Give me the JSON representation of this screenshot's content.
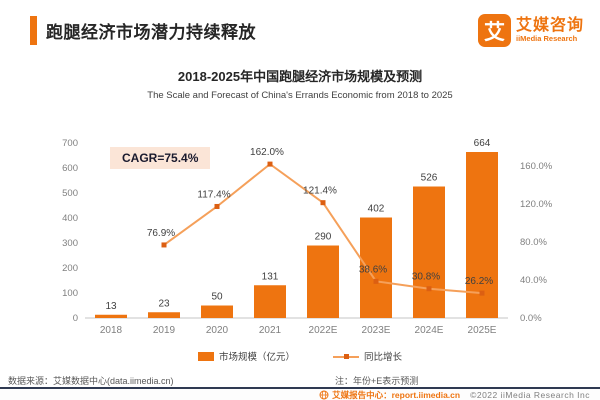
{
  "header": {
    "title": "跑腿经济市场潜力持续释放",
    "logo": {
      "mark": "艾",
      "name_cn": "艾媒咨询",
      "name_en": "iiMedia Research"
    }
  },
  "chart": {
    "title": "2018-2025年中国跑腿经济市场规模及预测",
    "subtitle": "The Scale and Forecast of China's Errands Economic from 2018 to 2025",
    "cagr_label": "CAGR=75.4%"
  },
  "chart_data": {
    "type": "bar",
    "categories": [
      "2018",
      "2019",
      "2020",
      "2021",
      "2022E",
      "2023E",
      "2024E",
      "2025E"
    ],
    "series": [
      {
        "name": "市场规模（亿元）",
        "type": "bar",
        "axis": "left",
        "values": [
          13,
          23,
          50,
          131,
          290,
          402,
          526,
          664
        ]
      },
      {
        "name": "同比增长",
        "type": "line",
        "axis": "right",
        "values": [
          null,
          76.9,
          117.4,
          162.0,
          121.4,
          38.6,
          30.8,
          26.2
        ],
        "labels": [
          "",
          "76.9%",
          "117.4%",
          "162.0%",
          "121.4%",
          "38.6%",
          "30.8%",
          "26.2%"
        ]
      }
    ],
    "left_axis": {
      "ticks": [
        0,
        100,
        200,
        300,
        400,
        500,
        600,
        700
      ],
      "min": 0,
      "max": 700
    },
    "right_axis": {
      "ticks": [
        "0.0%",
        "40.0%",
        "80.0%",
        "120.0%",
        "160.0%"
      ],
      "tick_step_pct": 40,
      "min": 0
    },
    "grid": false,
    "legend_position": "bottom",
    "annotation": "CAGR=75.4%"
  },
  "legend": {
    "bar_label": "市场规模（亿元）",
    "line_label": "同比增长"
  },
  "footer": {
    "source": "数据来源：艾媒数据中心(data.iimedia.cn)",
    "note": "注：年份+E表示预测",
    "report": "艾媒报告中心：report.iimedia.cn",
    "copyright": "©2022  iiMedia Research  Inc"
  },
  "colors": {
    "brand_orange": "#EE7410",
    "line_orange": "#F5A05A",
    "marker_orange": "#DC5F12",
    "cagr_bg": "#FBE5D7",
    "axis_text": "#7F7F7F",
    "data_label": "#404040",
    "baseline": "#D9D9D9",
    "footer_line": "#2F3A52"
  }
}
